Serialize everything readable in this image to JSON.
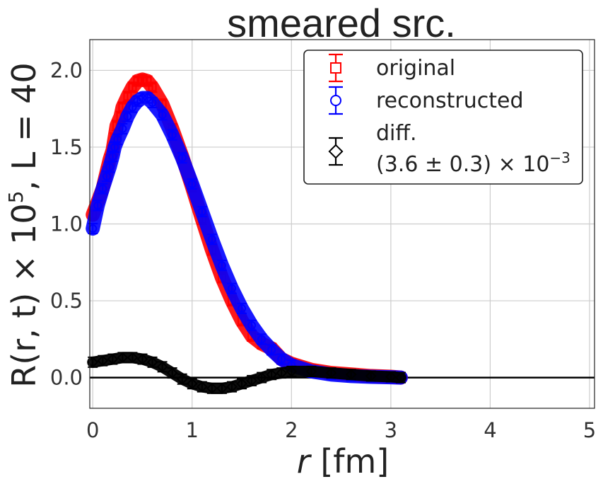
{
  "chart_data": {
    "type": "scatter",
    "title": "smeared src.",
    "xlabel_var": "r",
    "xlabel_unit": "[fm]",
    "ylabel_main": "R(r, t) × 10",
    "ylabel_exp": "5",
    "ylabel_suffix": ", L = 40",
    "xlim": [
      -0.03,
      5.05
    ],
    "ylim": [
      -0.2,
      2.2
    ],
    "xticks": [
      0,
      1,
      2,
      3,
      4,
      5
    ],
    "xtick_labels": [
      "0",
      "1",
      "2",
      "3",
      "4",
      "5"
    ],
    "yticks": [
      0.0,
      0.5,
      1.0,
      1.5,
      2.0
    ],
    "ytick_labels": [
      "0.0",
      "0.5",
      "1.0",
      "1.5",
      "2.0"
    ],
    "grid": true,
    "hline_y": 0,
    "legend": {
      "placement": "top-right",
      "entries": [
        {
          "label": "original",
          "marker": "square",
          "color": "#ff0000"
        },
        {
          "label": "reconstructed",
          "marker": "circle",
          "color": "#0000ff"
        },
        {
          "label": "diff.",
          "label_line2_main": "(3.6 ± 0.3) × 10",
          "label_line2_exp": "−3",
          "marker": "diamond",
          "color": "#000000"
        }
      ]
    },
    "series": [
      {
        "name": "original",
        "color": "#ff0000",
        "marker": "square",
        "x": [
          0.0,
          0.1,
          0.14,
          0.17,
          0.2,
          0.22,
          0.24,
          0.28,
          0.3,
          0.35,
          0.4,
          0.45,
          0.5,
          0.55,
          0.6,
          0.7,
          0.8,
          0.9,
          1.0,
          1.1,
          1.2,
          1.3,
          1.4,
          1.5,
          1.6,
          1.7,
          1.8,
          1.9,
          2.0,
          2.2,
          2.4,
          2.6,
          2.8,
          3.0,
          3.1
        ],
        "y": [
          1.06,
          1.23,
          1.34,
          1.42,
          1.48,
          1.56,
          1.64,
          1.7,
          1.76,
          1.83,
          1.89,
          1.93,
          1.94,
          1.93,
          1.89,
          1.78,
          1.62,
          1.44,
          1.24,
          1.03,
          0.83,
          0.65,
          0.5,
          0.37,
          0.27,
          0.22,
          0.19,
          0.12,
          0.09,
          0.05,
          0.03,
          0.02,
          0.01,
          0.005,
          0.0
        ]
      },
      {
        "name": "reconstructed",
        "color": "#0000ff",
        "marker": "circle",
        "x": [
          0.0,
          0.05,
          0.1,
          0.14,
          0.17,
          0.2,
          0.22,
          0.25,
          0.3,
          0.35,
          0.4,
          0.45,
          0.5,
          0.55,
          0.6,
          0.7,
          0.8,
          0.9,
          1.0,
          1.1,
          1.2,
          1.3,
          1.4,
          1.5,
          1.6,
          1.7,
          1.8,
          1.9,
          2.0,
          2.2,
          2.4,
          2.6,
          2.8,
          3.0,
          3.1
        ],
        "y": [
          0.97,
          1.12,
          1.23,
          1.31,
          1.37,
          1.44,
          1.5,
          1.55,
          1.62,
          1.7,
          1.76,
          1.8,
          1.82,
          1.82,
          1.79,
          1.71,
          1.58,
          1.43,
          1.26,
          1.08,
          0.9,
          0.73,
          0.58,
          0.45,
          0.34,
          0.25,
          0.18,
          0.12,
          0.08,
          0.04,
          0.02,
          0.01,
          0.005,
          0.002,
          0.0
        ]
      },
      {
        "name": "diff.",
        "color": "#000000",
        "marker": "diamond",
        "x": [
          0.0,
          0.1,
          0.2,
          0.3,
          0.4,
          0.5,
          0.6,
          0.7,
          0.8,
          0.9,
          1.0,
          1.1,
          1.2,
          1.3,
          1.4,
          1.5,
          1.6,
          1.7,
          1.8,
          1.9,
          2.0,
          2.2,
          2.4,
          2.6,
          2.8,
          3.0,
          3.1
        ],
        "y": [
          0.1,
          0.11,
          0.12,
          0.13,
          0.13,
          0.12,
          0.1,
          0.07,
          0.03,
          -0.01,
          -0.04,
          -0.06,
          -0.07,
          -0.07,
          -0.06,
          -0.04,
          -0.02,
          0.0,
          0.02,
          0.03,
          0.04,
          0.04,
          0.03,
          0.02,
          0.01,
          0.005,
          0.0
        ]
      }
    ]
  }
}
